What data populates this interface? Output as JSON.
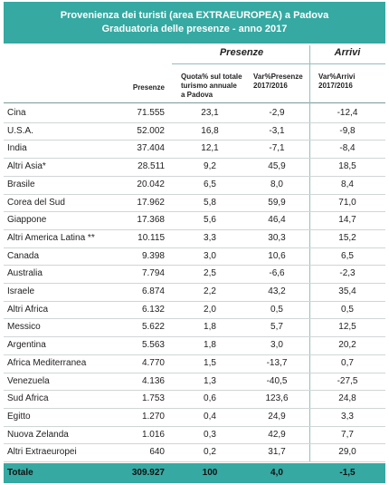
{
  "header": {
    "title": [
      "Provenienza dei turisti (area EXTRAEUROPEA) a Padova",
      "Graduatoria delle presenze - anno 2017"
    ]
  },
  "table": {
    "group_headers": [
      "Presenze",
      "Arrivi"
    ],
    "columns": [
      [
        "Presenze"
      ],
      [
        "Quota% sul totale",
        "turismo annuale",
        "a Padova"
      ],
      [
        "Var%Presenze",
        "2017/2016"
      ],
      [
        "Var%Arrivi",
        "2017/2016"
      ]
    ],
    "rows": [
      [
        "Cina",
        "71.555",
        "23,1",
        "-2,9",
        "-12,4"
      ],
      [
        "U.S.A.",
        "52.002",
        "16,8",
        "-3,1",
        "-9,8"
      ],
      [
        "India",
        "37.404",
        "12,1",
        "-7,1",
        "-8,4"
      ],
      [
        "Altri Asia*",
        "28.511",
        "9,2",
        "45,9",
        "18,5"
      ],
      [
        "Brasile",
        "20.042",
        "6,5",
        "8,0",
        "8,4"
      ],
      [
        "Corea del Sud",
        "17.962",
        "5,8",
        "59,9",
        "71,0"
      ],
      [
        "Giappone",
        "17.368",
        "5,6",
        "46,4",
        "14,7"
      ],
      [
        "Altri America Latina **",
        "10.115",
        "3,3",
        "30,3",
        "15,2"
      ],
      [
        "Canada",
        "9.398",
        "3,0",
        "10,6",
        "6,5"
      ],
      [
        "Australia",
        "7.794",
        "2,5",
        "-6,6",
        "-2,3"
      ],
      [
        "Israele",
        "6.874",
        "2,2",
        "43,2",
        "35,4"
      ],
      [
        "Altri Africa",
        "6.132",
        "2,0",
        "0,5",
        "0,5"
      ],
      [
        "Messico",
        "5.622",
        "1,8",
        "5,7",
        "12,5"
      ],
      [
        "Argentina",
        "5.563",
        "1,8",
        "3,0",
        "20,2"
      ],
      [
        "Africa Mediterranea",
        "4.770",
        "1,5",
        "-13,7",
        "0,7"
      ],
      [
        "Venezuela",
        "4.136",
        "1,3",
        "-40,5",
        "-27,5"
      ],
      [
        "Sud Africa",
        "1.753",
        "0,6",
        "123,6",
        "24,8"
      ],
      [
        "Egitto",
        "1.270",
        "0,4",
        "24,9",
        "3,3"
      ],
      [
        "Nuova Zelanda",
        "1.016",
        "0,3",
        "42,9",
        "7,7"
      ],
      [
        "Altri Extraeuropei",
        "640",
        "0,2",
        "31,7",
        "29,0"
      ]
    ],
    "total": [
      "Totale",
      "309.927",
      "100",
      "4,0",
      "-1,5"
    ]
  }
}
